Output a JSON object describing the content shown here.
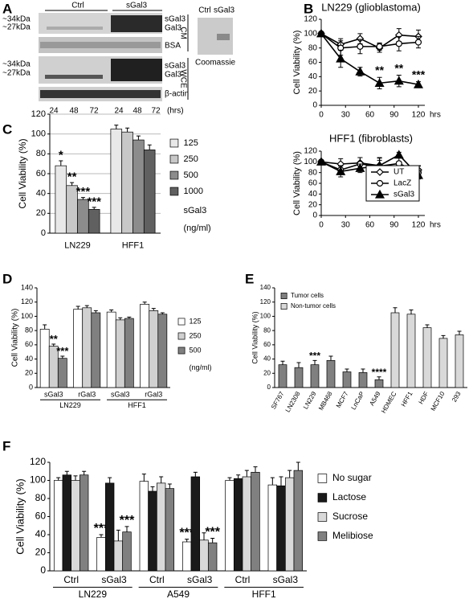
{
  "blot": {
    "panel": "A",
    "header": [
      "Ctrl",
      "sGal3"
    ],
    "markers_cm": [
      "~34kDa",
      "~27kDa"
    ],
    "labels_cm": [
      "sGal3",
      "Gal3",
      "BSA"
    ],
    "cm": "CM",
    "markers_wce": [
      "~34kDa",
      "~27kDa"
    ],
    "labels_wce": [
      "sGal3",
      "Gal3",
      "β-actin"
    ],
    "wce": "WCE",
    "times": [
      "24",
      "48",
      "72",
      "24",
      "48",
      "72"
    ],
    "time_unit": "(hrs)",
    "inset": {
      "header": [
        "Ctrl",
        "sGal3"
      ],
      "caption": "Coomassie"
    }
  },
  "chart_data": [
    {
      "type": "line",
      "panel": "B",
      "title": "LN229 (glioblastoma)",
      "ylabel": "Cell Viability (%)",
      "x_unit": "hrs",
      "x": [
        0,
        24,
        48,
        72,
        96,
        120
      ],
      "xlim": [
        0,
        120
      ],
      "xticks": [
        0,
        30,
        60,
        90,
        120
      ],
      "ylim": [
        0,
        120
      ],
      "yticks": [
        0,
        20,
        40,
        60,
        80,
        100,
        120
      ],
      "grid": false,
      "legend": false,
      "series": [
        {
          "marker": "diamond",
          "filled": false,
          "color": "#000000",
          "values": [
            100,
            85,
            93,
            80,
            98,
            96
          ],
          "errors": [
            0,
            8,
            7,
            6,
            9,
            9
          ],
          "annotations": [
            null,
            null,
            null,
            null,
            null,
            null
          ]
        },
        {
          "marker": "circle",
          "filled": false,
          "color": "#000000",
          "values": [
            100,
            80,
            82,
            82,
            86,
            88
          ],
          "errors": [
            0,
            10,
            10,
            5,
            10,
            8
          ],
          "annotations": [
            null,
            null,
            null,
            null,
            null,
            null
          ]
        },
        {
          "marker": "triangle",
          "filled": true,
          "color": "#000000",
          "values": [
            100,
            65,
            47,
            31,
            34,
            29
          ],
          "errors": [
            0,
            12,
            6,
            8,
            8,
            4
          ],
          "annotations": [
            null,
            null,
            null,
            "**",
            "**",
            "***"
          ]
        }
      ]
    },
    {
      "type": "line",
      "title": "HFF1 (fibroblasts)",
      "ylabel": "Cell Viability (%)",
      "x_unit": "hrs",
      "x": [
        0,
        24,
        48,
        72,
        96,
        120
      ],
      "xlim": [
        0,
        120
      ],
      "xticks": [
        0,
        30,
        60,
        90,
        120
      ],
      "ylim": [
        0,
        120
      ],
      "yticks": [
        0,
        20,
        40,
        60,
        80,
        100,
        120
      ],
      "grid": false,
      "legend": "lower right",
      "series": [
        {
          "name": "UT",
          "marker": "diamond",
          "filled": false,
          "color": "#000000",
          "values": [
            100,
            96,
            98,
            93,
            85,
            85
          ],
          "errors": [
            0,
            10,
            10,
            10,
            10,
            8
          ]
        },
        {
          "name": "LacZ",
          "marker": "circle",
          "filled": false,
          "color": "#000000",
          "values": [
            100,
            85,
            96,
            92,
            97,
            80
          ],
          "errors": [
            0,
            8,
            12,
            15,
            10,
            12
          ]
        },
        {
          "name": "sGal3",
          "marker": "triangle",
          "filled": true,
          "color": "#000000",
          "values": [
            100,
            82,
            88,
            93,
            113,
            75
          ],
          "errors": [
            0,
            10,
            8,
            15,
            5,
            6
          ]
        }
      ]
    },
    {
      "type": "bar",
      "panel": "C",
      "ylabel": "Cell  Viability (%)",
      "categories": [
        "LN229",
        "HFF1"
      ],
      "ylim": [
        0,
        120
      ],
      "yticks": [
        0,
        20,
        40,
        60,
        80,
        100,
        120
      ],
      "grid": true,
      "legend": "right",
      "legend_title": [
        "sGal3",
        "(ng/ml)"
      ],
      "series": [
        {
          "name": "125",
          "color": "#e8e8e8",
          "values": [
            68,
            105
          ],
          "errors": [
            5,
            4
          ],
          "annotations": [
            "*",
            null
          ]
        },
        {
          "name": "250",
          "color": "#c8c8c8",
          "values": [
            48,
            102
          ],
          "errors": [
            3,
            4
          ],
          "annotations": [
            "**",
            null
          ]
        },
        {
          "name": "500",
          "color": "#8c8c8c",
          "values": [
            34,
            94
          ],
          "errors": [
            2,
            4
          ],
          "annotations": [
            "***",
            null
          ]
        },
        {
          "name": "1000",
          "color": "#606060",
          "values": [
            24,
            84
          ],
          "errors": [
            2,
            5
          ],
          "annotations": [
            "***",
            null
          ]
        }
      ]
    },
    {
      "type": "bar",
      "panel": "D",
      "ylabel": "Cell Viability (%)",
      "categories": [
        "sGal3",
        "rGal3",
        "sGal3",
        "rGal3"
      ],
      "groups": [
        "LN229",
        "HFF1"
      ],
      "ylim": [
        0,
        140
      ],
      "yticks": [
        0,
        20,
        40,
        60,
        80,
        100,
        120,
        140
      ],
      "grid": false,
      "legend": "right",
      "legend_title": [
        "(ng/ml)"
      ],
      "series": [
        {
          "name": "125",
          "color": "#ffffff",
          "values": [
            82,
            110,
            106,
            117
          ],
          "errors": [
            6,
            4,
            3,
            3
          ],
          "annotations": [
            null,
            null,
            null,
            null
          ]
        },
        {
          "name": "250",
          "color": "#d0d0d0",
          "values": [
            58,
            112,
            95,
            108
          ],
          "errors": [
            3,
            3,
            3,
            3
          ],
          "annotations": [
            "**",
            null,
            null,
            null
          ]
        },
        {
          "name": "500",
          "color": "#808080",
          "values": [
            41,
            105,
            97,
            103
          ],
          "errors": [
            3,
            3,
            2,
            2
          ],
          "annotations": [
            "***",
            null,
            null,
            null
          ]
        }
      ]
    },
    {
      "type": "bar",
      "panel": "E",
      "ylabel": "Cell Viability (%)",
      "categories": [
        "SF767",
        "LN2308",
        "LN229",
        "MB468",
        "MCF7",
        "LnCaP",
        "A549",
        "HDMEC",
        "HFF1",
        "HDF",
        "MCF10",
        "293"
      ],
      "ylim": [
        0,
        140
      ],
      "yticks": [
        0,
        20,
        40,
        60,
        80,
        100,
        120,
        140
      ],
      "grid": false,
      "legend": "upper left",
      "series": [
        {
          "name": "Tumor cells",
          "color": "#808080",
          "values": [
            32,
            28,
            32,
            38,
            22,
            21,
            11,
            null,
            null,
            null,
            null,
            null
          ],
          "errors": [
            5,
            7,
            6,
            6,
            4,
            5,
            4,
            null,
            null,
            null,
            null,
            null
          ],
          "annotations": [
            null,
            null,
            "***",
            null,
            null,
            null,
            "****",
            null,
            null,
            null,
            null,
            null
          ]
        },
        {
          "name": "Non-tumor cells",
          "color": "#d9d9d9",
          "values": [
            null,
            null,
            null,
            null,
            null,
            null,
            null,
            105,
            103,
            84,
            69,
            74
          ],
          "errors": [
            null,
            null,
            null,
            null,
            null,
            null,
            null,
            7,
            6,
            4,
            4,
            5
          ],
          "annotations": [
            null,
            null,
            null,
            null,
            null,
            null,
            null,
            null,
            null,
            null,
            null,
            null
          ]
        }
      ]
    },
    {
      "type": "bar",
      "panel": "F",
      "ylabel": "Cell Viability (%)",
      "categories": [
        "Ctrl",
        "sGal3",
        "Ctrl",
        "sGal3",
        "Ctrl",
        "sGal3"
      ],
      "groups": [
        "LN229",
        "A549",
        "HFF1"
      ],
      "ylim": [
        0,
        120
      ],
      "yticks": [
        0,
        20,
        40,
        60,
        80,
        100,
        120
      ],
      "grid": false,
      "legend": "right",
      "series": [
        {
          "name": "No sugar",
          "color": "#ffffff",
          "values": [
            100,
            37,
            99,
            32,
            100,
            95
          ],
          "errors": [
            3,
            3,
            8,
            3,
            3,
            8
          ],
          "annotations": [
            null,
            "***",
            null,
            "***",
            null,
            null
          ]
        },
        {
          "name": "Lactose",
          "color": "#1a1a1a",
          "values": [
            106,
            97,
            88,
            104,
            102,
            94
          ],
          "errors": [
            4,
            6,
            5,
            5,
            4,
            10
          ],
          "annotations": [
            null,
            null,
            null,
            null,
            null,
            null
          ]
        },
        {
          "name": "Sucrose",
          "color": "#d9d9d9",
          "values": [
            100,
            33,
            97,
            34,
            104,
            103
          ],
          "errors": [
            5,
            12,
            7,
            8,
            7,
            8
          ],
          "annotations": [
            null,
            null,
            null,
            null,
            null,
            null
          ]
        },
        {
          "name": "Melibiose",
          "color": "#808080",
          "values": [
            106,
            43,
            91,
            31,
            109,
            111
          ],
          "errors": [
            4,
            6,
            5,
            5,
            6,
            9
          ],
          "annotations": [
            null,
            "***",
            null,
            "***",
            null,
            null
          ]
        }
      ]
    }
  ]
}
